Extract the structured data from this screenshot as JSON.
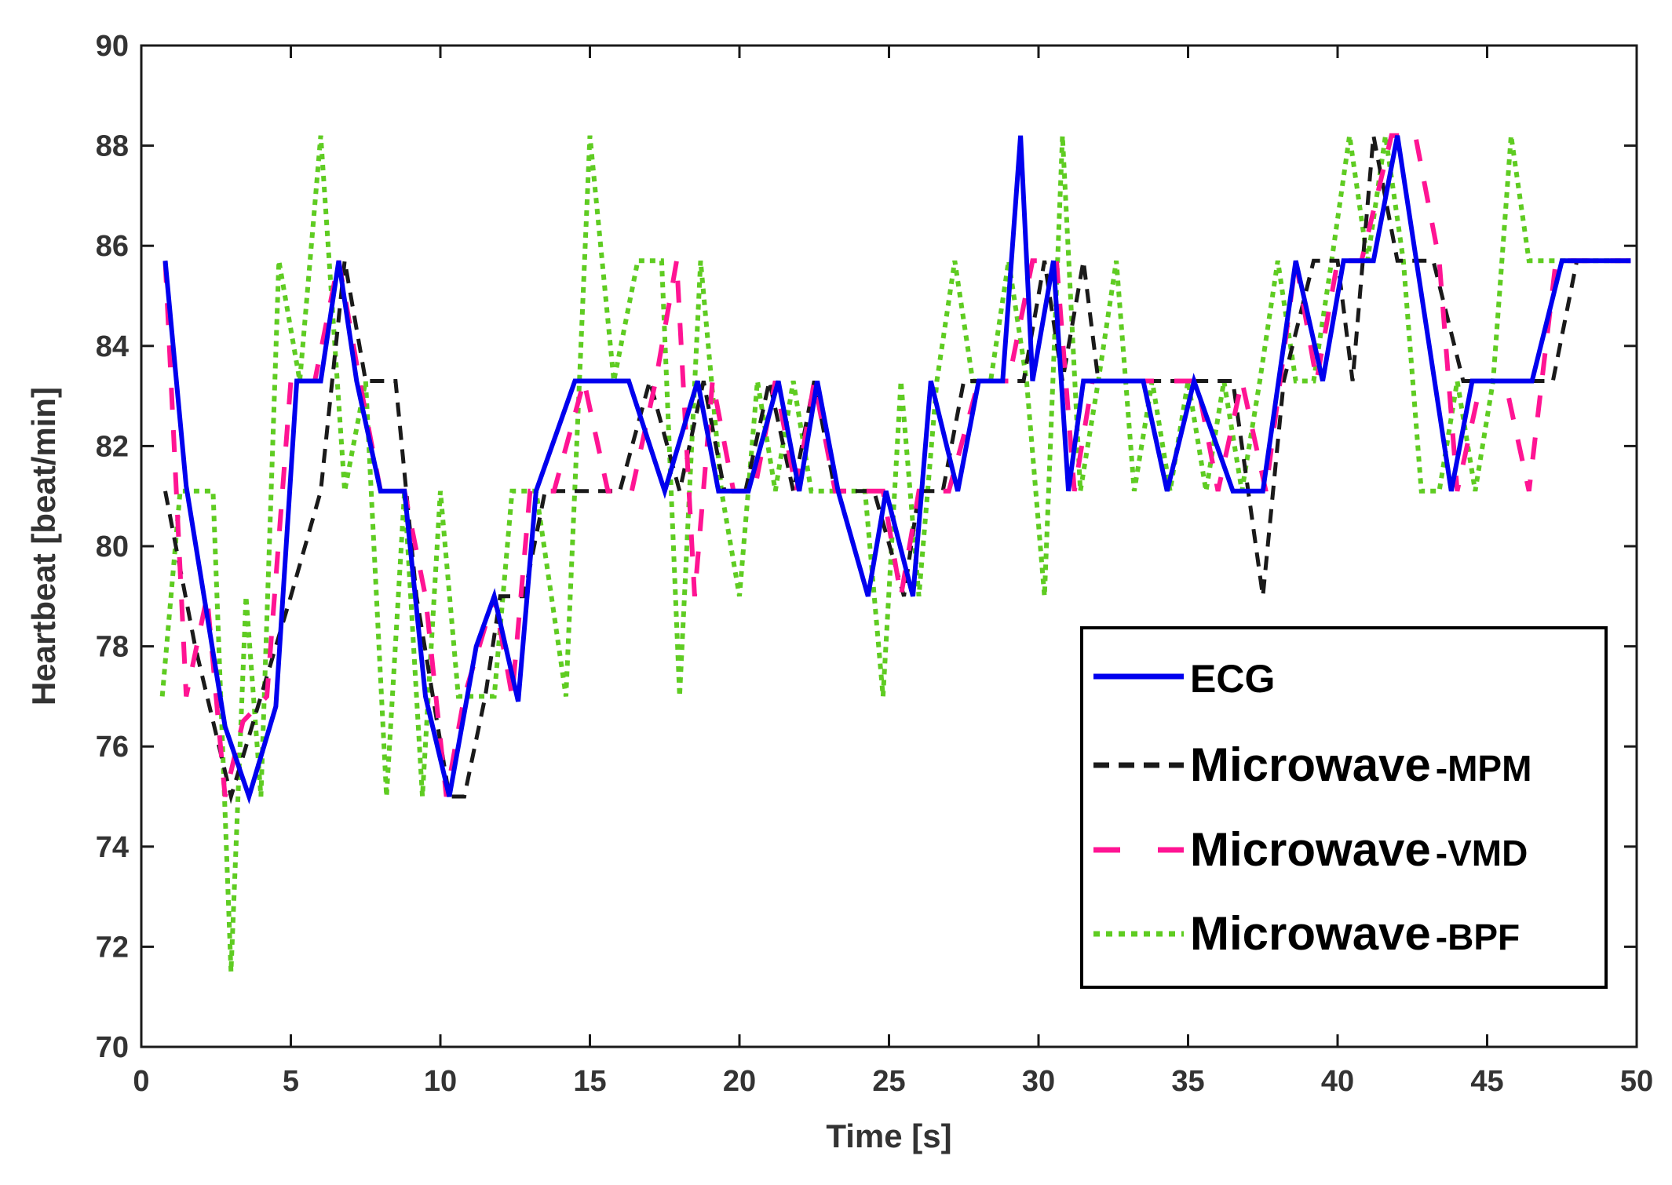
{
  "chart_data": {
    "type": "line",
    "title": "",
    "xlabel": "Time [s]",
    "ylabel": "Heartbeat [beat/min]",
    "xlim": [
      0,
      50
    ],
    "ylim": [
      70,
      90
    ],
    "xticks": [
      0,
      5,
      10,
      15,
      20,
      25,
      30,
      35,
      40,
      45,
      50
    ],
    "yticks": [
      70,
      72,
      74,
      76,
      78,
      80,
      82,
      84,
      86,
      88,
      90
    ],
    "grid": false,
    "legend_position": "bottom-right",
    "series": [
      {
        "name": "ECG",
        "legend_main": "ECG",
        "legend_suffix": "",
        "color": "#0000ee",
        "style": "solid",
        "x": [
          0.8,
          1.5,
          2.8,
          3.6,
          4.5,
          5.2,
          6.0,
          6.6,
          7.2,
          8.0,
          8.8,
          9.5,
          10.3,
          11.2,
          11.8,
          12.6,
          13.2,
          14.5,
          16.3,
          17.5,
          18.6,
          19.3,
          20.3,
          21.3,
          22.0,
          22.6,
          23.3,
          24.3,
          24.9,
          25.8,
          26.4,
          27.3,
          28.0,
          28.8,
          29.4,
          29.8,
          30.5,
          31.0,
          31.5,
          32.5,
          33.5,
          34.3,
          35.2,
          36.5,
          37.5,
          38.6,
          39.5,
          40.2,
          41.2,
          42.0,
          43.8,
          44.5,
          45.5,
          46.5,
          47.5,
          48.5,
          49.8
        ],
        "y": [
          85.7,
          81.2,
          76.4,
          75.0,
          76.8,
          83.3,
          83.3,
          85.7,
          83.3,
          81.1,
          81.1,
          77.0,
          75.0,
          78.0,
          79.0,
          76.9,
          81.1,
          83.3,
          83.3,
          81.1,
          83.3,
          81.1,
          81.1,
          83.3,
          81.1,
          83.3,
          81.1,
          79.0,
          81.1,
          79.0,
          83.3,
          81.1,
          83.3,
          83.3,
          88.2,
          83.3,
          85.7,
          81.1,
          83.3,
          83.3,
          83.3,
          81.1,
          83.3,
          81.1,
          81.1,
          85.7,
          83.3,
          85.7,
          85.7,
          88.2,
          81.1,
          83.3,
          83.3,
          83.3,
          85.7,
          85.7,
          85.7
        ]
      },
      {
        "name": "Microwave -MPM",
        "legend_main": "Microwave",
        "legend_suffix": "-MPM",
        "color": "#1a1a1a",
        "style": "dash",
        "x": [
          0.8,
          1.8,
          3.0,
          4.0,
          5.0,
          6.0,
          6.8,
          7.5,
          8.5,
          9.2,
          10.3,
          10.8,
          11.5,
          12.0,
          12.8,
          13.5,
          14.5,
          16.0,
          17.0,
          18.0,
          18.8,
          19.5,
          20.2,
          21.0,
          21.8,
          22.5,
          23.2,
          24.5,
          25.5,
          26.0,
          26.8,
          27.5,
          28.5,
          29.5,
          30.2,
          30.8,
          31.5,
          32.0,
          32.5,
          33.5,
          34.5,
          35.5,
          36.5,
          37.5,
          38.2,
          39.2,
          40.0,
          40.5,
          41.2,
          42.0,
          43.2,
          44.2,
          45.0,
          46.0,
          47.2,
          48.0,
          49.8
        ],
        "y": [
          81.1,
          78.0,
          75.0,
          77.0,
          79.0,
          81.1,
          85.7,
          83.3,
          83.3,
          79.0,
          75.0,
          75.0,
          77.0,
          79.0,
          79.0,
          81.1,
          81.1,
          81.1,
          83.3,
          81.1,
          83.3,
          81.1,
          81.1,
          83.3,
          81.1,
          83.3,
          81.1,
          81.1,
          79.0,
          81.1,
          81.1,
          83.3,
          83.3,
          83.3,
          85.7,
          83.3,
          85.7,
          83.3,
          83.3,
          83.3,
          83.3,
          83.3,
          83.3,
          79.0,
          83.3,
          85.7,
          85.7,
          83.3,
          88.2,
          85.7,
          85.7,
          83.3,
          83.3,
          83.3,
          83.3,
          85.7,
          85.7
        ]
      },
      {
        "name": "Microwave-VMD",
        "legend_main": "Microwave",
        "legend_suffix": "-VMD",
        "color": "#ff1493",
        "style": "longdash",
        "x": [
          0.8,
          1.5,
          2.2,
          2.8,
          3.4,
          4.2,
          5.0,
          5.8,
          6.6,
          7.3,
          8.0,
          8.8,
          9.5,
          10.2,
          10.8,
          11.8,
          12.4,
          13.0,
          13.8,
          14.8,
          15.6,
          16.4,
          17.2,
          17.9,
          18.5,
          19.1,
          19.8,
          20.5,
          21.2,
          21.9,
          22.5,
          23.2,
          24.0,
          24.8,
          25.4,
          26.0,
          27.0,
          28.0,
          29.0,
          29.8,
          30.6,
          31.2,
          31.8,
          32.6,
          33.5,
          34.5,
          35.3,
          36.0,
          36.8,
          37.6,
          38.6,
          39.3,
          40.0,
          40.8,
          41.8,
          42.6,
          43.4,
          44.0,
          44.8,
          45.6,
          46.4,
          47.3,
          48.5,
          49.8
        ],
        "y": [
          85.7,
          77.0,
          79.0,
          75.0,
          76.5,
          77.0,
          83.3,
          83.3,
          85.7,
          83.3,
          81.1,
          81.1,
          79.0,
          75.0,
          77.0,
          79.0,
          77.0,
          81.1,
          81.1,
          83.3,
          81.1,
          81.1,
          83.3,
          85.7,
          79.0,
          83.3,
          81.1,
          81.1,
          83.3,
          81.1,
          83.3,
          81.1,
          81.1,
          81.1,
          79.0,
          81.1,
          81.1,
          83.3,
          83.3,
          85.7,
          85.7,
          81.1,
          83.3,
          83.3,
          83.3,
          83.3,
          83.3,
          81.1,
          83.3,
          81.1,
          85.7,
          83.3,
          85.7,
          85.7,
          88.2,
          88.2,
          85.7,
          81.1,
          83.3,
          83.3,
          81.1,
          85.7,
          85.7,
          85.7
        ]
      },
      {
        "name": "Microwave -BPF",
        "legend_main": "Microwave",
        "legend_suffix": "-BPF",
        "color": "#5fcc22",
        "style": "dot",
        "x": [
          0.7,
          1.3,
          1.8,
          2.4,
          3.0,
          3.5,
          4.0,
          4.6,
          5.3,
          6.0,
          6.8,
          7.5,
          8.2,
          8.8,
          9.4,
          10.0,
          10.6,
          11.2,
          11.8,
          12.4,
          13.2,
          14.2,
          15.0,
          15.8,
          16.6,
          17.4,
          18.0,
          18.7,
          19.4,
          20.0,
          20.6,
          21.2,
          21.8,
          22.4,
          23.0,
          23.6,
          24.2,
          24.8,
          25.4,
          26.0,
          26.6,
          27.2,
          27.8,
          28.4,
          29.0,
          29.6,
          30.2,
          30.8,
          31.4,
          32.0,
          32.6,
          33.2,
          33.8,
          34.4,
          35.0,
          35.6,
          36.2,
          36.8,
          37.4,
          38.0,
          38.6,
          39.2,
          39.8,
          40.4,
          41.0,
          41.6,
          42.2,
          42.8,
          43.4,
          44.0,
          44.6,
          45.2,
          45.8,
          46.4,
          47.0,
          47.6,
          48.2,
          49.8
        ],
        "y": [
          77.0,
          81.1,
          81.1,
          81.1,
          71.5,
          79.0,
          75.0,
          85.7,
          83.3,
          88.2,
          81.1,
          83.3,
          75.0,
          81.1,
          75.0,
          81.1,
          77.0,
          77.0,
          77.0,
          81.1,
          81.1,
          77.0,
          88.2,
          83.3,
          85.7,
          85.7,
          77.0,
          85.7,
          81.1,
          79.0,
          83.3,
          81.1,
          83.3,
          81.1,
          81.1,
          81.1,
          81.1,
          77.0,
          83.3,
          79.0,
          83.3,
          85.7,
          83.3,
          83.3,
          85.7,
          83.3,
          79.0,
          88.2,
          81.1,
          83.3,
          85.7,
          81.1,
          83.3,
          81.1,
          83.3,
          81.1,
          83.3,
          81.1,
          83.3,
          85.7,
          83.3,
          83.3,
          85.7,
          88.2,
          85.7,
          88.2,
          85.7,
          81.1,
          81.1,
          83.3,
          81.1,
          83.3,
          88.2,
          85.7,
          85.7,
          85.7,
          85.7,
          85.7
        ]
      }
    ]
  }
}
